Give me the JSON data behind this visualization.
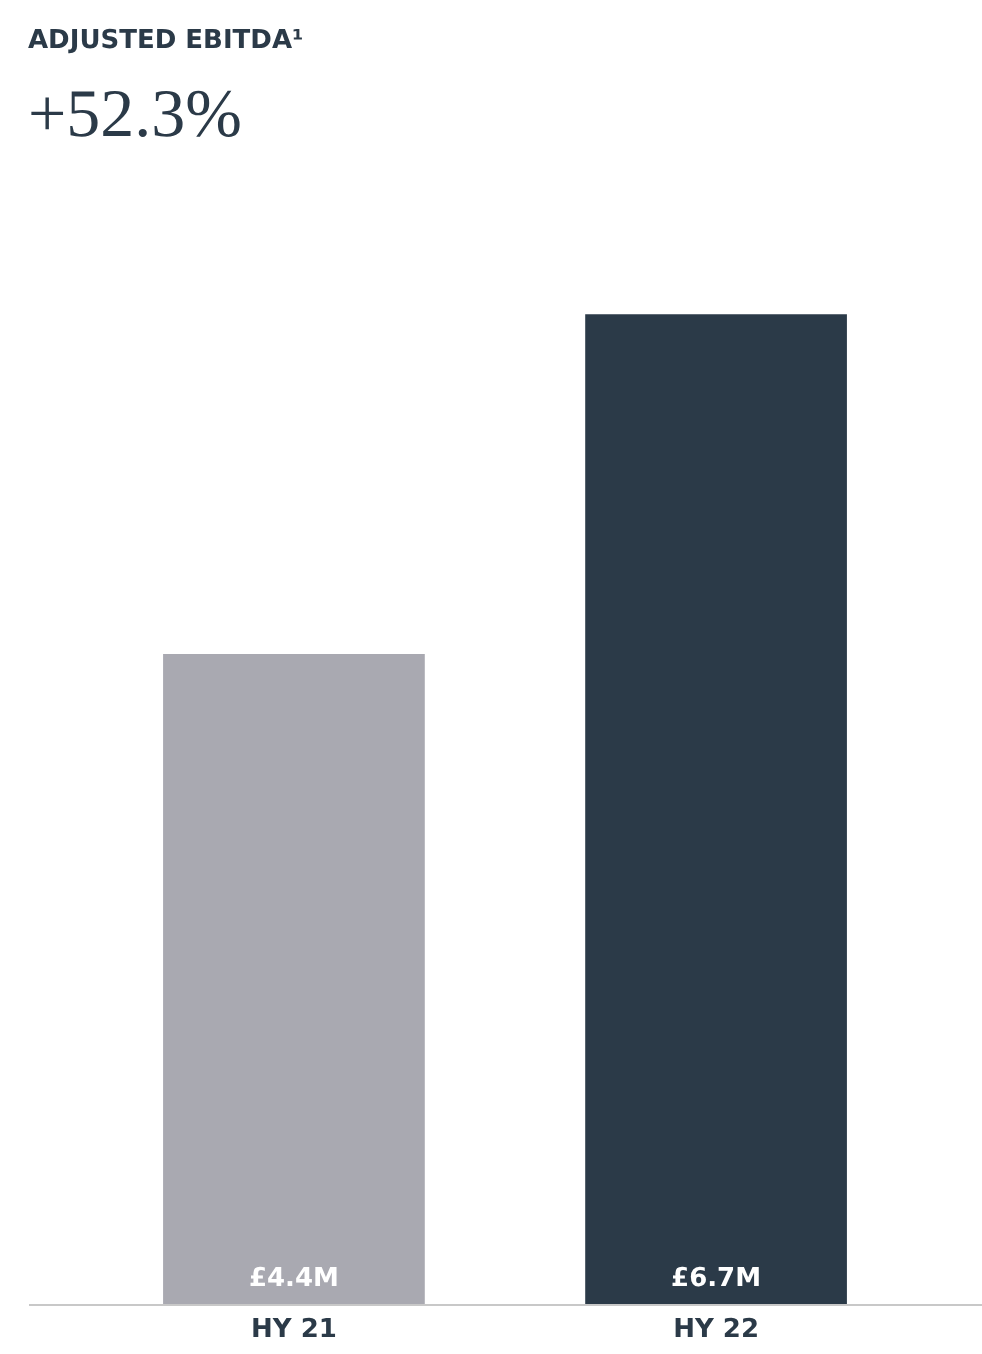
{
  "chart_data": {
    "type": "bar",
    "title": "ADJUSTED EBITDA¹",
    "subtitle": "+52.3%",
    "categories": [
      "HY 21",
      "HY 22"
    ],
    "values": [
      4.4,
      6.7
    ],
    "colors": [
      "#a9a9b1",
      "#2b3a48"
    ],
    "value_labels": [
      "£4.4M",
      "£6.7M"
    ],
    "tick_labels": "x",
    "grid": false
  }
}
